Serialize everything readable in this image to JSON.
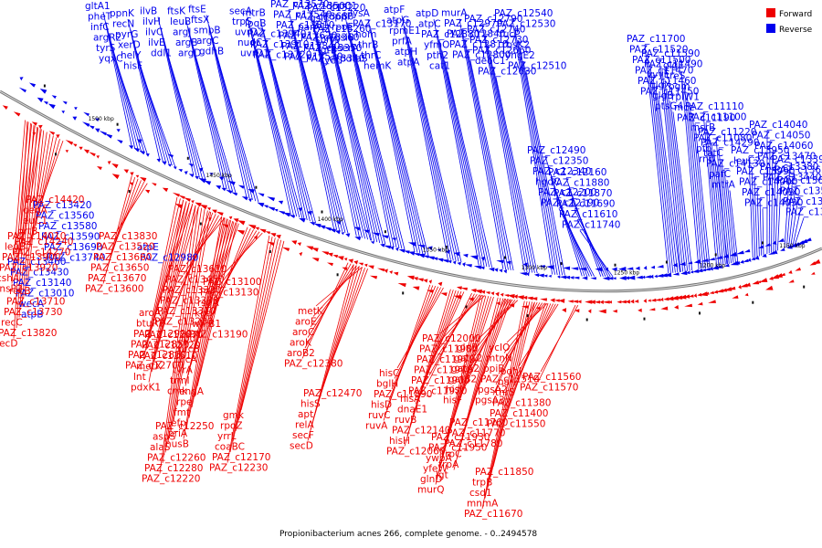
{
  "caption": "Propionibacterium acnes 266, complete genome. - 0..2494578",
  "legend": [
    {
      "label": "Forward",
      "color": "#ee0000"
    },
    {
      "label": "Reverse",
      "color": "#0000ee"
    }
  ],
  "colors": {
    "forward": "#ee0000",
    "reverse": "#0000ee",
    "backbone": "#888888"
  },
  "ticks": [
    "1500 kbp",
    "1450 kbp",
    "1400 kbp",
    "1350 kbp",
    "1300 kbp",
    "1250 kbp",
    "1200 kbp",
    "1150 kbp"
  ],
  "reverse_labels": [
    "gltA1",
    "pheT",
    "infC",
    "argR2",
    "tyrS",
    "yqxC",
    "ppnK",
    "recN",
    "pyrG",
    "xerD",
    "helY",
    "hisF",
    "hit",
    "ilvB",
    "ilvH",
    "ilvC",
    "ilvE",
    "ddl1",
    "thiL",
    "ftsK",
    "leuB",
    "argJ",
    "argB",
    "argD",
    "argH",
    "ftsE",
    "ftsX",
    "smpB",
    "argC",
    "gdhB",
    "trpH",
    "secA",
    "trpS",
    "uvrD2",
    "nudC",
    "uvrD1",
    "vlbL",
    "mtrB",
    "lpqB",
    "PAZ_c13940",
    "PAZ_c13910",
    "PAZ_c13720",
    "PAZ_c13570",
    "PAZ_c13540",
    "PAZ_c13810",
    "PAZ_c13620",
    "PAZ_c13840",
    "PAZ_c13530",
    "PAZ_c13500",
    "PAZ_c13680",
    "parA1",
    "PAZ_c13360",
    "PAZ_c13350",
    "PAZ_c13340",
    "PAZ_c13220",
    "gsiC",
    "PAZ_c13260",
    "sbnA",
    "lgrB",
    "tycC",
    "dppC1",
    "oppF",
    "rpoE",
    "gsiB",
    "serA",
    "pdtaS",
    "lysA",
    "PAZ_c13170",
    "hom",
    "thrB",
    "thrC",
    "hemK",
    "atpF",
    "atpG",
    "rpmE1",
    "prfA",
    "atpH",
    "atpA",
    "atpD",
    "atpC",
    "PAZ_c12880",
    "yfmO",
    "pth2",
    "cat1",
    "zitB",
    "murA",
    "PAZ_c12970",
    "PAZ_c12840",
    "PAZ_c12810",
    "PAZ_c12800",
    "PAZ_c12790",
    "PAZ_c12740",
    "PAZ_c12730",
    "PAZ_c12660",
    "deoC1",
    "PAZ_c12630",
    "PAZ_c12540",
    "PAZ_c12530",
    "fucP",
    "rbsK2",
    "yhgE2",
    "PAZ_c12510",
    "PAZ_c12490",
    "PAZ_c12350",
    "PAZ_c12340",
    "hgdC",
    "PAZ_c12200",
    "PAZ_c12190",
    "PAZ_c12160",
    "PAZ_c11880",
    "PAZ_c11870",
    "PAZ_c11690",
    "PAZ_c11610",
    "PAZ_c11740",
    "PAZ_c11700",
    "PAZ_c11520",
    "PAZ_c11500",
    "PAZ_c11470",
    "PAZ_c11460",
    "PAZ_c11450",
    "PAZ_c11590",
    "PAZ_c11490",
    "vvyE",
    "glgX",
    "glgB",
    "ptsG4",
    "glgE",
    "treS",
    "pgm",
    "rplW1",
    "mce",
    "PAZ_c11190",
    "PAZ_c11110",
    "PAZ_c11100",
    "msrB",
    "PAZ_c11080",
    "pfp",
    "rnd",
    "PAZ_c11220",
    "PAZ_c14290",
    "tatC",
    "PAZ_c14130",
    "pafC",
    "mtrA",
    "PAZ_c13950",
    "leuC2",
    "PAZ_c13990",
    "PAZ_c14000",
    "PAZ_c14020",
    "PAZ_c14030",
    "PAZ_c14040",
    "PAZ_c14050",
    "PAZ_c14060",
    "PAZ_c13470",
    "PAZ_c13380",
    "PAZ_c13440",
    "PAZ_c13390",
    "PAZ_c13630",
    "PAZ_c13640",
    "PAZ_c13550",
    "PAZ_c13400",
    "PAZ_c13410",
    "PAZ_c13420",
    "PAZ_c13560",
    "PAZ_c13580",
    "PAZ_c13590",
    "PAZ_c13690",
    "PAZ_c13740",
    "PAZ_c13460",
    "PAZ_c13430",
    "PAZ_c13140",
    "PAZ_c13010",
    "wecA",
    "atpB",
    "atpE",
    "PAZ_c12980"
  ],
  "forward_labels": [
    "PAZ_c14420",
    "deoA",
    "leuC1",
    "prtB",
    "PAZ_c14240",
    "PAZ_c14270",
    "PAZ_c14010",
    "leuB",
    "PAZ_c13900",
    "PAZ_c13920",
    "cshA",
    "ansP2",
    "recB",
    "PAZ_c13710",
    "PAZ_c13730",
    "recC",
    "PAZ_c13820",
    "recD",
    "PAZ_c13830",
    "PAZ_c13520",
    "PAZ_c13660",
    "PAZ_c13650",
    "PAZ_c13670",
    "PAZ_c13600",
    "PAZ_c13610",
    "PAZ_c13450",
    "PAZ_c13320",
    "PAZ_c13330",
    "PAZ_c13310",
    "PAZ_c13230",
    "PAZ_c13100",
    "PAZ_c13130",
    "rsgA",
    "kgd",
    "whiB1",
    "PAZ_c13190",
    "aroA",
    "btuR2",
    "PAZ_c12990",
    "PAZ_c12850",
    "PAZ_c12860",
    "PAZ_c12700",
    "PAZ_c12670",
    "PAZ_c12720",
    "PAZ_c12610",
    "metX",
    "lnt",
    "pdxK1",
    "lpd",
    "prcB",
    "prcA",
    "tyrA",
    "trmI",
    "cmk",
    "engA",
    "rpe",
    "fmt",
    "efp",
    "priA",
    "nusB",
    "PAZ_c12250",
    "aspS",
    "alaS",
    "PAZ_c12260",
    "PAZ_c12280",
    "PAZ_c12220",
    "gmk",
    "rpoZ",
    "yrrL",
    "coaBC",
    "PAZ_c12170",
    "PAZ_c12230",
    "metK",
    "aroE",
    "aroC",
    "aroK",
    "aroB2",
    "PAZ_c12380",
    "PAZ_c12470",
    "hisS",
    "apt",
    "relA",
    "secF",
    "secD",
    "hisC",
    "bglH",
    "PAZ_c11890",
    "hisD",
    "ruvC",
    "ruvA",
    "hisA",
    "dnaE1",
    "ruvB",
    "PAZ_c12140",
    "hisH",
    "PAZ_c12060",
    "PAZ_c12000",
    "PAZ_c11980",
    "PAZ_c11970",
    "PAZ_c11910",
    "PAZ_c11900",
    "PAZ_c11920",
    "PAZ_c11930",
    "PAZ_c11950",
    "ywbA",
    "yfeW",
    "glnD",
    "murQ",
    "glnB",
    "gatC2",
    "gatA2",
    "gatB2",
    "hisI",
    "hisF",
    "PAZ_c11760",
    "PAZ_c11770",
    "PAZ_c11780",
    "trpC",
    "trpA",
    "lgt",
    "PAZ_c11850",
    "trpB",
    "csd1",
    "mnmA",
    "PAZ_c11670",
    "PAZ_c11680",
    "ycIO",
    "mtnN",
    "ppiB",
    "PAZ_c11510",
    "pgsA2",
    "pgsA3",
    "odhI",
    "narP",
    "thrS",
    "PAZ_c11380",
    "PAZ_c11400",
    "PAZ_c11550",
    "PAZ_c11560",
    "PAZ_c11570"
  ]
}
